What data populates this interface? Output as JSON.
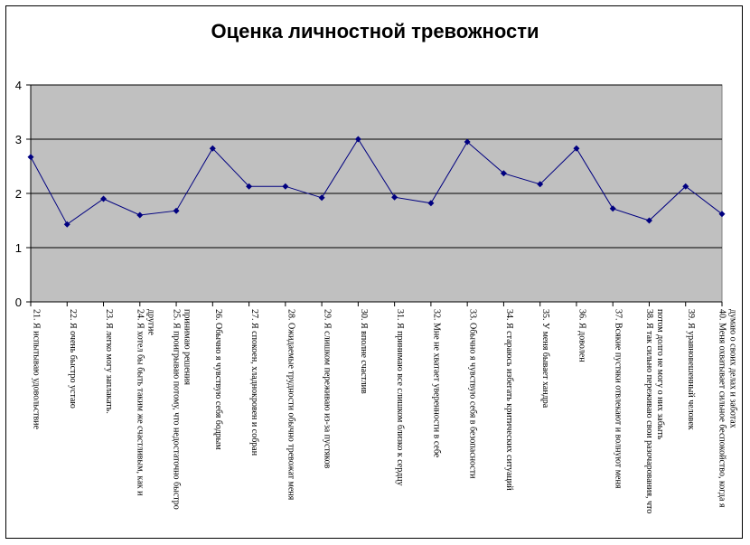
{
  "chart_data": {
    "type": "line",
    "title": "Оценка личностной тревожности",
    "ylim": [
      0,
      4
    ],
    "yticks": [
      0,
      1,
      2,
      3,
      4
    ],
    "grid": true,
    "plot_bg": "#c0c0c0",
    "line_color": "#000080",
    "categories": [
      [
        "21. Я испытываю удовольствие"
      ],
      [
        "22. Я очень быстро устаю"
      ],
      [
        "23. Я легко могу заплакать."
      ],
      [
        "24. Я хотел бы быть таким же счастливым, как и",
        "другие"
      ],
      [
        "25. Я проигрываю потому, что недостаточно быстро",
        "принимаю решения"
      ],
      [
        "26. Обычно я чувствую себя бодрым"
      ],
      [
        "27. Я спокоен, хладнокровен и собран"
      ],
      [
        "28. Ожидаемые трудности обычно тревожат меня"
      ],
      [
        "29. Я слишком переживаю из-за пустяков"
      ],
      [
        "30. Я вполне счастлив"
      ],
      [
        "31. Я принимаю все слишком близко к сердцу"
      ],
      [
        "32. Мне не хватает уверенности в себе"
      ],
      [
        "33.  Обычно я чувствую себя в безопасности"
      ],
      [
        "34. Я стараюсь избегать критических  ситуаций"
      ],
      [
        "35. У меня бывает хандра"
      ],
      [
        "36. Я доволен"
      ],
      [
        "37. Всякие пустяки отвлекают и волнуют меня"
      ],
      [
        "38. Я так сильно переживаю свои разочарования, что",
        "потом долго не могу о них  забыть"
      ],
      [
        "39. Я уравновешенный человек"
      ],
      [
        "40. Меня охватывает сильное беспокойство, когда я",
        "думаю о своих делах и заботах"
      ]
    ],
    "values": [
      2.67,
      1.43,
      1.9,
      1.6,
      1.68,
      2.83,
      2.13,
      2.13,
      1.92,
      3.0,
      1.93,
      1.82,
      2.95,
      2.37,
      2.17,
      2.83,
      1.72,
      1.5,
      2.13,
      1.62
    ]
  }
}
